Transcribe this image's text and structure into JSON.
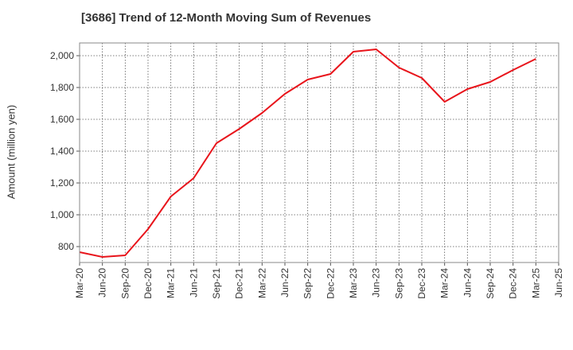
{
  "chart_data": {
    "type": "line",
    "title": "[3686]  Trend of 12-Month Moving Sum of Revenues",
    "xlabel": "",
    "ylabel": "Amount (million yen)",
    "x": [
      "Mar-20",
      "Jun-20",
      "Sep-20",
      "Dec-20",
      "Mar-21",
      "Jun-21",
      "Sep-21",
      "Dec-21",
      "Mar-22",
      "Jun-22",
      "Sep-22",
      "Dec-22",
      "Mar-23",
      "Jun-23",
      "Sep-23",
      "Dec-23",
      "Mar-24",
      "Jun-24",
      "Sep-24",
      "Dec-24",
      "Mar-25",
      "Jun-25"
    ],
    "series": [
      {
        "name": "",
        "color": "#e8141b",
        "values": [
          765,
          735,
          745,
          910,
          1115,
          1230,
          1450,
          1540,
          1640,
          1760,
          1850,
          1885,
          2025,
          2040,
          1925,
          1860,
          1710,
          1790,
          1835,
          1910,
          1980,
          null
        ]
      }
    ],
    "yticks": [
      800,
      1000,
      1200,
      1400,
      1600,
      1800,
      2000
    ],
    "ytick_labels": [
      "800",
      "1,000",
      "1,200",
      "1,400",
      "1,600",
      "1,800",
      "2,000"
    ],
    "ylim": [
      700,
      2080
    ],
    "grid": true,
    "legend": "none"
  }
}
